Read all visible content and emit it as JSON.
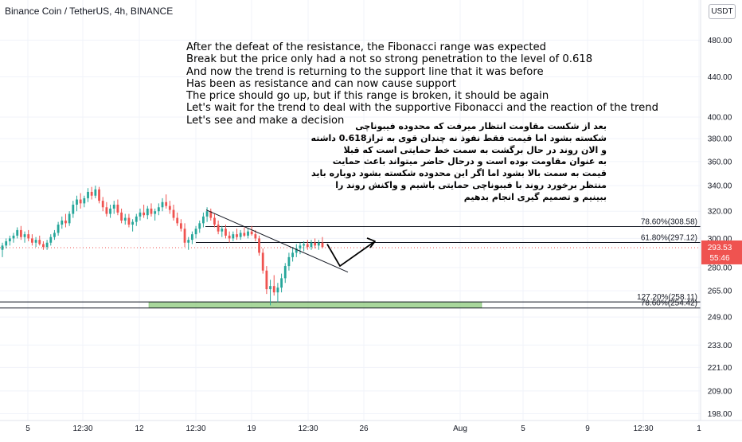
{
  "chart_title": "Binance Coin / TetherUS, 4h, BINANCE",
  "currency_button": "USDT",
  "annotation_en": [
    "After the defeat of the resistance, the Fibonacci range was expected",
    "Break but the price only had a not so strong penetration to the level of 0.618",
    "And now the trend is returning to the support line that it was before",
    "Has been as resistance and can now cause support",
    "The price should go up, but if this range is broken, it should be again",
    "Let's wait for the trend to deal with the supportive Fibonacci and the reaction of the trend",
    "Let's see and make a decision"
  ],
  "annotation_fa": [
    "بعد از شکست مقاومت انتظار میرفت که محدوده فیبوناچی",
    "شکسته بشود اما قیمت فقط نفوذ نه چندان قوی به تراز0.618 داشته",
    "و الان روند در حال برگشت به سمت خط حمایتی است که قبلا",
    "به عنوان مقاومت بوده است و درحال حاضر میتواند باعث حمایت",
    "قیمت به سمت بالا بشود اما اگر این محدوده شکسته بشود دوباره باید",
    "منتظر برخورد روند با فیبوناچی حمایتی باشیم و واکنش روند را",
    "ببینیم  و تصمیم گیری انجام بدهیم"
  ],
  "chart_data": {
    "type": "candlestick",
    "symbol": "Binance Coin / TetherUS",
    "interval": "4h",
    "exchange": "BINANCE",
    "y_scale": "log",
    "ylim": [
      194,
      510
    ],
    "y_ticks": [
      198,
      209,
      221,
      233,
      249,
      265,
      280,
      300,
      320,
      340,
      360,
      380,
      400,
      440,
      480
    ],
    "y_tick_labels": [
      "198.00",
      "209.00",
      "221.00",
      "233.00",
      "249.00",
      "265.00",
      "280.00",
      "300.00",
      "320.00",
      "340.00",
      "360.00",
      "380.00",
      "400.00",
      "440.00",
      "480.00"
    ],
    "x_ticks": [
      "5",
      "12:30",
      "12",
      "12:30",
      "19",
      "12:30",
      "26",
      "Aug",
      "5",
      "9",
      "12:30",
      "1"
    ],
    "last_price": "293.53",
    "countdown": "55:46",
    "colors": {
      "up": "#26a69a",
      "down": "#ef5350",
      "fib_line": "#131722",
      "support_zone": "#8bc97a",
      "last_price_label": "#ef5350",
      "grid": "#f0f3fa"
    },
    "fib_levels": [
      {
        "label": "78.60%(308.58)",
        "price": 308.58
      },
      {
        "label": "61.80%(297.12)",
        "price": 297.12
      },
      {
        "label": "127.20%(258.11)",
        "price": 258.11
      },
      {
        "label": "78.60%(254.42)",
        "price": 254.42
      }
    ],
    "support_zone": {
      "from": 254.42,
      "to": 258.11
    },
    "trendline": {
      "from": 321,
      "to": 277
    },
    "projection": {
      "points": [
        296,
        281,
        298
      ]
    },
    "candles": [
      {
        "o": 292,
        "h": 297,
        "l": 287,
        "c": 295
      },
      {
        "o": 295,
        "h": 300,
        "l": 293,
        "c": 298
      },
      {
        "o": 298,
        "h": 302,
        "l": 295,
        "c": 300
      },
      {
        "o": 300,
        "h": 304,
        "l": 297,
        "c": 302
      },
      {
        "o": 302,
        "h": 308,
        "l": 300,
        "c": 306
      },
      {
        "o": 306,
        "h": 309,
        "l": 299,
        "c": 301
      },
      {
        "o": 301,
        "h": 305,
        "l": 297,
        "c": 303
      },
      {
        "o": 303,
        "h": 306,
        "l": 298,
        "c": 300
      },
      {
        "o": 300,
        "h": 303,
        "l": 295,
        "c": 297
      },
      {
        "o": 297,
        "h": 301,
        "l": 294,
        "c": 299
      },
      {
        "o": 299,
        "h": 302,
        "l": 295,
        "c": 296
      },
      {
        "o": 296,
        "h": 298,
        "l": 292,
        "c": 294
      },
      {
        "o": 294,
        "h": 299,
        "l": 292,
        "c": 297
      },
      {
        "o": 297,
        "h": 303,
        "l": 295,
        "c": 301
      },
      {
        "o": 301,
        "h": 306,
        "l": 299,
        "c": 304
      },
      {
        "o": 304,
        "h": 312,
        "l": 302,
        "c": 310
      },
      {
        "o": 310,
        "h": 316,
        "l": 307,
        "c": 313
      },
      {
        "o": 313,
        "h": 318,
        "l": 308,
        "c": 311
      },
      {
        "o": 311,
        "h": 320,
        "l": 309,
        "c": 318
      },
      {
        "o": 318,
        "h": 328,
        "l": 315,
        "c": 325
      },
      {
        "o": 325,
        "h": 332,
        "l": 320,
        "c": 329
      },
      {
        "o": 329,
        "h": 334,
        "l": 322,
        "c": 326
      },
      {
        "o": 326,
        "h": 332,
        "l": 323,
        "c": 330
      },
      {
        "o": 330,
        "h": 338,
        "l": 327,
        "c": 335
      },
      {
        "o": 335,
        "h": 339,
        "l": 329,
        "c": 332
      },
      {
        "o": 332,
        "h": 340,
        "l": 330,
        "c": 337
      },
      {
        "o": 337,
        "h": 339,
        "l": 326,
        "c": 328
      },
      {
        "o": 328,
        "h": 331,
        "l": 320,
        "c": 323
      },
      {
        "o": 323,
        "h": 327,
        "l": 316,
        "c": 318
      },
      {
        "o": 318,
        "h": 325,
        "l": 315,
        "c": 322
      },
      {
        "o": 322,
        "h": 328,
        "l": 318,
        "c": 325
      },
      {
        "o": 325,
        "h": 329,
        "l": 317,
        "c": 319
      },
      {
        "o": 319,
        "h": 322,
        "l": 311,
        "c": 313
      },
      {
        "o": 313,
        "h": 318,
        "l": 310,
        "c": 315
      },
      {
        "o": 315,
        "h": 318,
        "l": 308,
        "c": 310
      },
      {
        "o": 310,
        "h": 314,
        "l": 305,
        "c": 312
      },
      {
        "o": 312,
        "h": 318,
        "l": 309,
        "c": 316
      },
      {
        "o": 316,
        "h": 322,
        "l": 313,
        "c": 319
      },
      {
        "o": 319,
        "h": 325,
        "l": 315,
        "c": 317
      },
      {
        "o": 317,
        "h": 324,
        "l": 314,
        "c": 322
      },
      {
        "o": 322,
        "h": 326,
        "l": 316,
        "c": 318
      },
      {
        "o": 318,
        "h": 322,
        "l": 313,
        "c": 320
      },
      {
        "o": 320,
        "h": 326,
        "l": 317,
        "c": 323
      },
      {
        "o": 323,
        "h": 330,
        "l": 320,
        "c": 327
      },
      {
        "o": 327,
        "h": 333,
        "l": 322,
        "c": 324
      },
      {
        "o": 324,
        "h": 328,
        "l": 318,
        "c": 321
      },
      {
        "o": 321,
        "h": 325,
        "l": 313,
        "c": 315
      },
      {
        "o": 315,
        "h": 319,
        "l": 309,
        "c": 311
      },
      {
        "o": 311,
        "h": 314,
        "l": 305,
        "c": 307
      },
      {
        "o": 307,
        "h": 311,
        "l": 294,
        "c": 297
      },
      {
        "o": 297,
        "h": 301,
        "l": 292,
        "c": 299
      },
      {
        "o": 299,
        "h": 305,
        "l": 296,
        "c": 303
      },
      {
        "o": 303,
        "h": 309,
        "l": 300,
        "c": 307
      },
      {
        "o": 307,
        "h": 313,
        "l": 304,
        "c": 311
      },
      {
        "o": 311,
        "h": 319,
        "l": 308,
        "c": 316
      },
      {
        "o": 316,
        "h": 323,
        "l": 312,
        "c": 320
      },
      {
        "o": 320,
        "h": 322,
        "l": 313,
        "c": 315
      },
      {
        "o": 315,
        "h": 318,
        "l": 308,
        "c": 310
      },
      {
        "o": 310,
        "h": 313,
        "l": 303,
        "c": 305
      },
      {
        "o": 305,
        "h": 309,
        "l": 301,
        "c": 307
      },
      {
        "o": 307,
        "h": 310,
        "l": 300,
        "c": 302
      },
      {
        "o": 302,
        "h": 305,
        "l": 297,
        "c": 300
      },
      {
        "o": 300,
        "h": 305,
        "l": 298,
        "c": 303
      },
      {
        "o": 303,
        "h": 307,
        "l": 299,
        "c": 301
      },
      {
        "o": 301,
        "h": 306,
        "l": 299,
        "c": 304
      },
      {
        "o": 304,
        "h": 308,
        "l": 301,
        "c": 302
      },
      {
        "o": 302,
        "h": 307,
        "l": 300,
        "c": 305
      },
      {
        "o": 305,
        "h": 309,
        "l": 302,
        "c": 303
      },
      {
        "o": 303,
        "h": 306,
        "l": 298,
        "c": 300
      },
      {
        "o": 300,
        "h": 302,
        "l": 288,
        "c": 290
      },
      {
        "o": 290,
        "h": 293,
        "l": 276,
        "c": 278
      },
      {
        "o": 278,
        "h": 281,
        "l": 263,
        "c": 266
      },
      {
        "o": 266,
        "h": 272,
        "l": 256,
        "c": 268
      },
      {
        "o": 268,
        "h": 275,
        "l": 262,
        "c": 264
      },
      {
        "o": 264,
        "h": 270,
        "l": 258,
        "c": 267
      },
      {
        "o": 267,
        "h": 276,
        "l": 264,
        "c": 273
      },
      {
        "o": 273,
        "h": 283,
        "l": 270,
        "c": 281
      },
      {
        "o": 281,
        "h": 290,
        "l": 278,
        "c": 287
      },
      {
        "o": 287,
        "h": 294,
        "l": 284,
        "c": 290
      },
      {
        "o": 290,
        "h": 296,
        "l": 287,
        "c": 293
      },
      {
        "o": 293,
        "h": 297,
        "l": 289,
        "c": 295
      },
      {
        "o": 295,
        "h": 298,
        "l": 291,
        "c": 296
      },
      {
        "o": 296,
        "h": 299,
        "l": 292,
        "c": 294
      },
      {
        "o": 294,
        "h": 299,
        "l": 292,
        "c": 297
      },
      {
        "o": 297,
        "h": 300,
        "l": 293,
        "c": 295
      },
      {
        "o": 295,
        "h": 299,
        "l": 292,
        "c": 297
      },
      {
        "o": 297,
        "h": 301,
        "l": 293,
        "c": 294
      }
    ]
  }
}
